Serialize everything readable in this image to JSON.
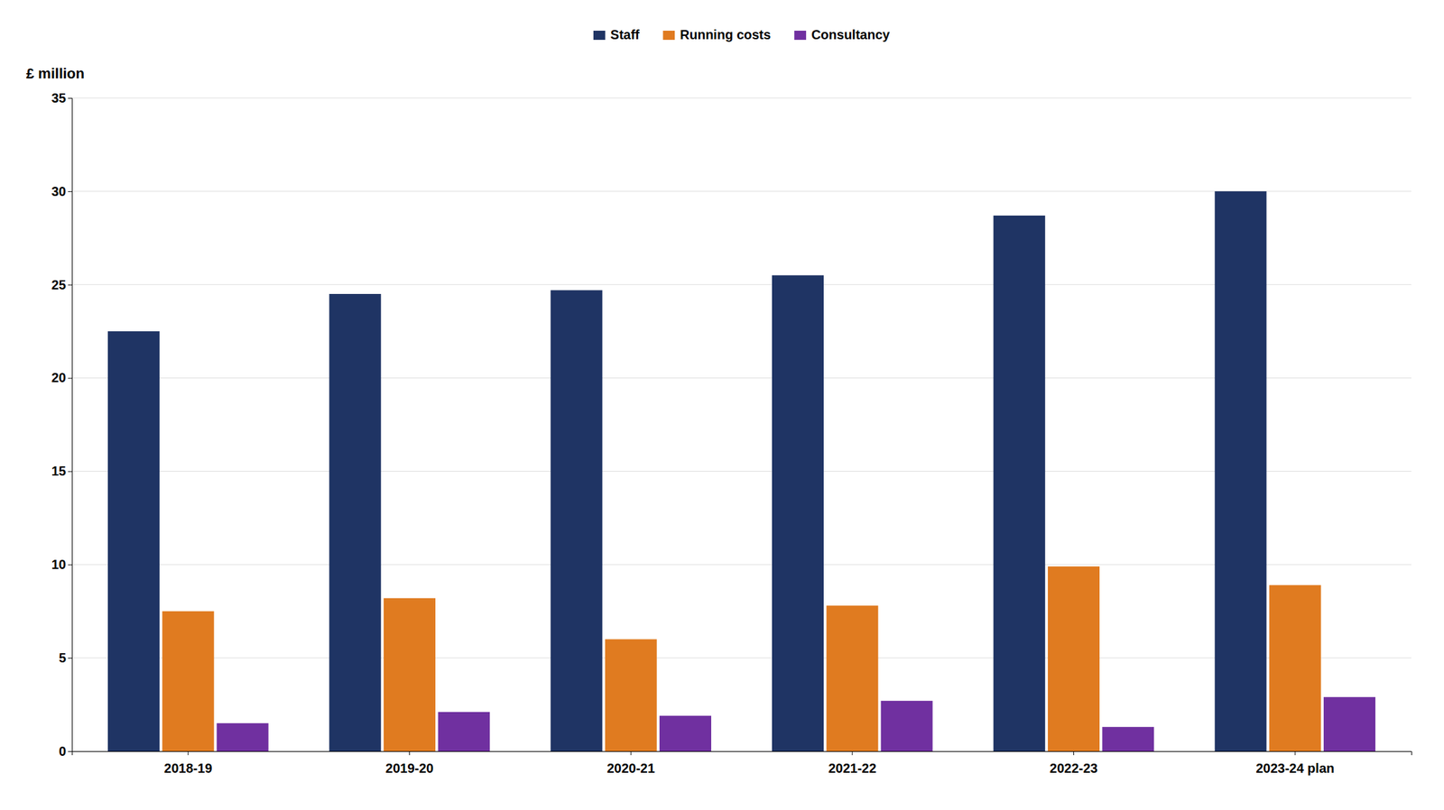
{
  "chart_data": {
    "type": "bar",
    "ylabel": "£ million",
    "categories": [
      "2018-19",
      "2019-20",
      "2020-21",
      "2021-22",
      "2022-23",
      "2023-24 plan"
    ],
    "series": [
      {
        "name": "Staff",
        "color": "#1f3464",
        "values": [
          22.5,
          24.5,
          24.7,
          25.5,
          28.7,
          30.0
        ]
      },
      {
        "name": "Running costs",
        "color": "#e07b20",
        "values": [
          7.5,
          8.2,
          6.0,
          7.8,
          9.9,
          8.9
        ]
      },
      {
        "name": "Consultancy",
        "color": "#7030a0",
        "values": [
          1.5,
          2.1,
          1.9,
          2.7,
          1.3,
          2.9
        ]
      }
    ],
    "ylim": [
      0,
      35
    ],
    "yticks": [
      0,
      5,
      10,
      15,
      20,
      25,
      30,
      35
    ],
    "grid": true,
    "legend": "top"
  }
}
